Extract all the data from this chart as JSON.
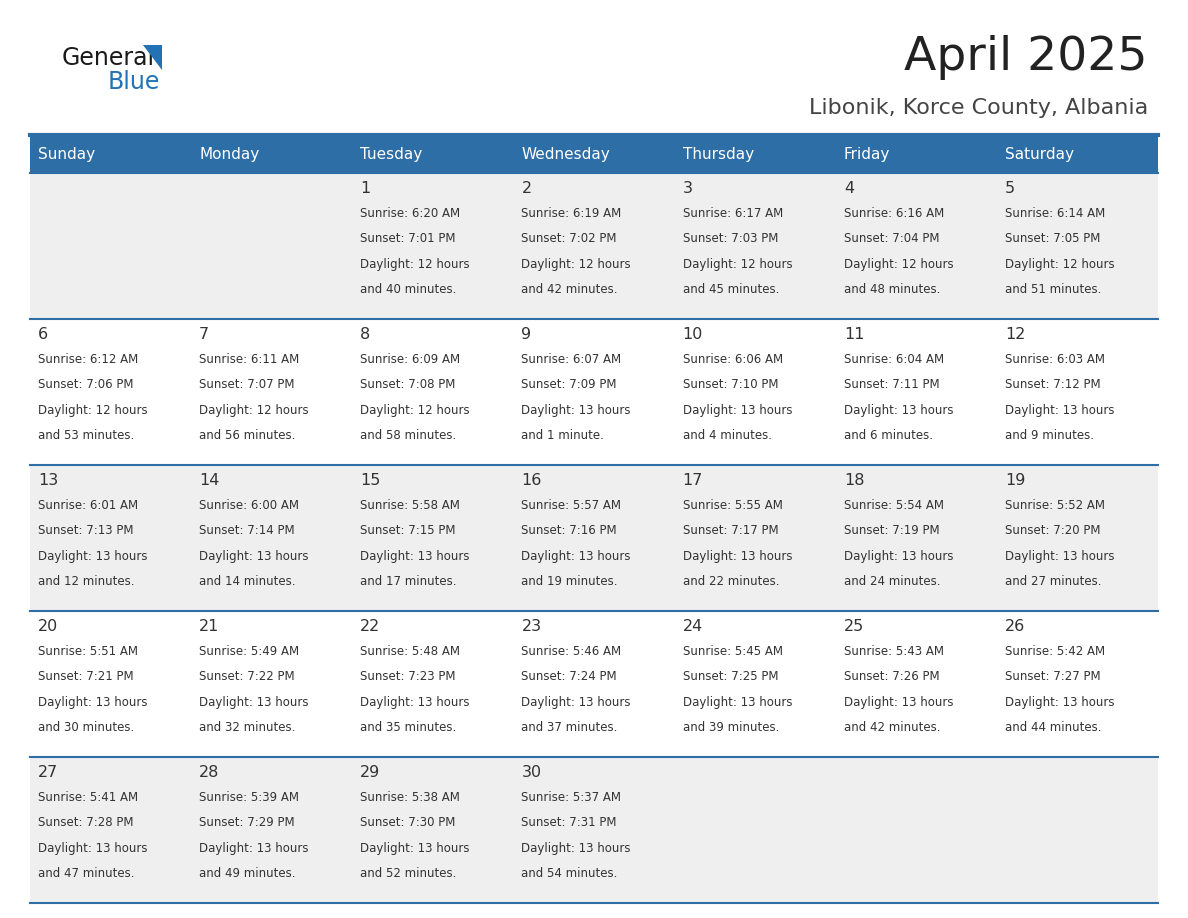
{
  "title": "April 2025",
  "subtitle": "Libonik, Korce County, Albania",
  "days_of_week": [
    "Sunday",
    "Monday",
    "Tuesday",
    "Wednesday",
    "Thursday",
    "Friday",
    "Saturday"
  ],
  "header_bg": "#2E6EA6",
  "header_text": "#FFFFFF",
  "row_odd_bg": "#EFEFEF",
  "row_even_bg": "#FFFFFF",
  "cell_text": "#333333",
  "border_color": "#2E6EA6",
  "title_color": "#222222",
  "subtitle_color": "#444444",
  "logo_text_color": "#1a1a1a",
  "logo_blue_color": "#2272B5",
  "calendar": [
    [
      {
        "day": "",
        "sunrise": "",
        "sunset": "",
        "daylight": ""
      },
      {
        "day": "",
        "sunrise": "",
        "sunset": "",
        "daylight": ""
      },
      {
        "day": "1",
        "sunrise": "6:20 AM",
        "sunset": "7:01 PM",
        "daylight": "12 hours\nand 40 minutes."
      },
      {
        "day": "2",
        "sunrise": "6:19 AM",
        "sunset": "7:02 PM",
        "daylight": "12 hours\nand 42 minutes."
      },
      {
        "day": "3",
        "sunrise": "6:17 AM",
        "sunset": "7:03 PM",
        "daylight": "12 hours\nand 45 minutes."
      },
      {
        "day": "4",
        "sunrise": "6:16 AM",
        "sunset": "7:04 PM",
        "daylight": "12 hours\nand 48 minutes."
      },
      {
        "day": "5",
        "sunrise": "6:14 AM",
        "sunset": "7:05 PM",
        "daylight": "12 hours\nand 51 minutes."
      }
    ],
    [
      {
        "day": "6",
        "sunrise": "6:12 AM",
        "sunset": "7:06 PM",
        "daylight": "12 hours\nand 53 minutes."
      },
      {
        "day": "7",
        "sunrise": "6:11 AM",
        "sunset": "7:07 PM",
        "daylight": "12 hours\nand 56 minutes."
      },
      {
        "day": "8",
        "sunrise": "6:09 AM",
        "sunset": "7:08 PM",
        "daylight": "12 hours\nand 58 minutes."
      },
      {
        "day": "9",
        "sunrise": "6:07 AM",
        "sunset": "7:09 PM",
        "daylight": "13 hours\nand 1 minute."
      },
      {
        "day": "10",
        "sunrise": "6:06 AM",
        "sunset": "7:10 PM",
        "daylight": "13 hours\nand 4 minutes."
      },
      {
        "day": "11",
        "sunrise": "6:04 AM",
        "sunset": "7:11 PM",
        "daylight": "13 hours\nand 6 minutes."
      },
      {
        "day": "12",
        "sunrise": "6:03 AM",
        "sunset": "7:12 PM",
        "daylight": "13 hours\nand 9 minutes."
      }
    ],
    [
      {
        "day": "13",
        "sunrise": "6:01 AM",
        "sunset": "7:13 PM",
        "daylight": "13 hours\nand 12 minutes."
      },
      {
        "day": "14",
        "sunrise": "6:00 AM",
        "sunset": "7:14 PM",
        "daylight": "13 hours\nand 14 minutes."
      },
      {
        "day": "15",
        "sunrise": "5:58 AM",
        "sunset": "7:15 PM",
        "daylight": "13 hours\nand 17 minutes."
      },
      {
        "day": "16",
        "sunrise": "5:57 AM",
        "sunset": "7:16 PM",
        "daylight": "13 hours\nand 19 minutes."
      },
      {
        "day": "17",
        "sunrise": "5:55 AM",
        "sunset": "7:17 PM",
        "daylight": "13 hours\nand 22 minutes."
      },
      {
        "day": "18",
        "sunrise": "5:54 AM",
        "sunset": "7:19 PM",
        "daylight": "13 hours\nand 24 minutes."
      },
      {
        "day": "19",
        "sunrise": "5:52 AM",
        "sunset": "7:20 PM",
        "daylight": "13 hours\nand 27 minutes."
      }
    ],
    [
      {
        "day": "20",
        "sunrise": "5:51 AM",
        "sunset": "7:21 PM",
        "daylight": "13 hours\nand 30 minutes."
      },
      {
        "day": "21",
        "sunrise": "5:49 AM",
        "sunset": "7:22 PM",
        "daylight": "13 hours\nand 32 minutes."
      },
      {
        "day": "22",
        "sunrise": "5:48 AM",
        "sunset": "7:23 PM",
        "daylight": "13 hours\nand 35 minutes."
      },
      {
        "day": "23",
        "sunrise": "5:46 AM",
        "sunset": "7:24 PM",
        "daylight": "13 hours\nand 37 minutes."
      },
      {
        "day": "24",
        "sunrise": "5:45 AM",
        "sunset": "7:25 PM",
        "daylight": "13 hours\nand 39 minutes."
      },
      {
        "day": "25",
        "sunrise": "5:43 AM",
        "sunset": "7:26 PM",
        "daylight": "13 hours\nand 42 minutes."
      },
      {
        "day": "26",
        "sunrise": "5:42 AM",
        "sunset": "7:27 PM",
        "daylight": "13 hours\nand 44 minutes."
      }
    ],
    [
      {
        "day": "27",
        "sunrise": "5:41 AM",
        "sunset": "7:28 PM",
        "daylight": "13 hours\nand 47 minutes."
      },
      {
        "day": "28",
        "sunrise": "5:39 AM",
        "sunset": "7:29 PM",
        "daylight": "13 hours\nand 49 minutes."
      },
      {
        "day": "29",
        "sunrise": "5:38 AM",
        "sunset": "7:30 PM",
        "daylight": "13 hours\nand 52 minutes."
      },
      {
        "day": "30",
        "sunrise": "5:37 AM",
        "sunset": "7:31 PM",
        "daylight": "13 hours\nand 54 minutes."
      },
      {
        "day": "",
        "sunrise": "",
        "sunset": "",
        "daylight": ""
      },
      {
        "day": "",
        "sunrise": "",
        "sunset": "",
        "daylight": ""
      },
      {
        "day": "",
        "sunrise": "",
        "sunset": "",
        "daylight": ""
      }
    ]
  ]
}
